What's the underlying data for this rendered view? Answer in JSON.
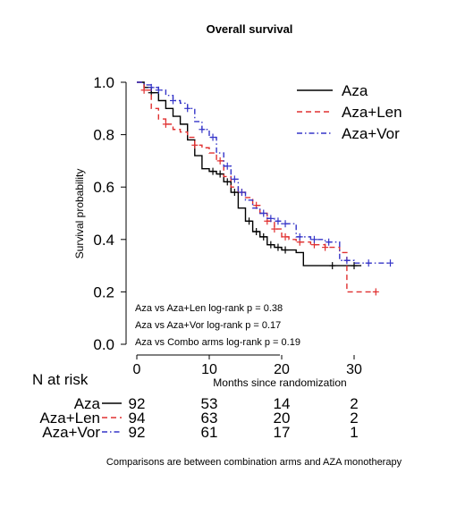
{
  "chart_data": {
    "type": "line",
    "subtype": "kaplan-meier",
    "title": "Overall survival",
    "xlabel": "Months since randomization",
    "ylabel": "Survival probability",
    "xlim": [
      -1,
      35.5
    ],
    "ylim": [
      0,
      1
    ],
    "x_ticks": [
      0,
      10,
      20,
      30
    ],
    "y_ticks": [
      0.0,
      0.2,
      0.4,
      0.6,
      0.8,
      1.0
    ],
    "y_tick_labels": [
      "0.0",
      "0.2",
      "0.4",
      "0.6",
      "0.8",
      "1.0"
    ],
    "legend_position": "top-right",
    "series": [
      {
        "name": "Aza",
        "color": "#000000",
        "dash": "solid",
        "x": [
          0,
          1,
          2,
          3,
          4,
          5,
          6,
          7,
          8,
          9,
          10,
          11,
          12,
          13,
          14,
          15,
          16,
          17,
          18,
          19,
          20,
          22,
          23,
          24,
          26,
          28,
          30,
          31
        ],
        "y": [
          1.0,
          0.98,
          0.96,
          0.93,
          0.9,
          0.87,
          0.84,
          0.78,
          0.72,
          0.67,
          0.66,
          0.65,
          0.62,
          0.58,
          0.52,
          0.47,
          0.43,
          0.41,
          0.38,
          0.37,
          0.36,
          0.35,
          0.3,
          0.3,
          0.3,
          0.3,
          0.3,
          0.3
        ],
        "censor_x": [
          2,
          10.5,
          11.5,
          12.5,
          13.5,
          15.5,
          16.5,
          17.5,
          18.5,
          19.5,
          20.5,
          27,
          30
        ],
        "censor_y": [
          0.96,
          0.66,
          0.65,
          0.62,
          0.58,
          0.47,
          0.43,
          0.41,
          0.38,
          0.37,
          0.36,
          0.3,
          0.3
        ]
      },
      {
        "name": "Aza+Len",
        "color": "#e03030",
        "dash": "dash",
        "x": [
          0,
          1,
          2,
          3,
          4,
          5,
          6,
          7,
          8,
          9,
          10,
          11,
          12,
          13,
          14,
          15,
          16,
          17,
          18,
          19,
          20,
          21,
          22,
          24,
          26,
          28,
          29,
          30,
          33
        ],
        "y": [
          1.0,
          0.97,
          0.9,
          0.86,
          0.84,
          0.82,
          0.81,
          0.79,
          0.76,
          0.75,
          0.73,
          0.7,
          0.64,
          0.6,
          0.58,
          0.56,
          0.53,
          0.5,
          0.47,
          0.44,
          0.41,
          0.4,
          0.39,
          0.38,
          0.37,
          0.35,
          0.2,
          0.2,
          0.2
        ],
        "censor_x": [
          1,
          4,
          8,
          11.5,
          14.5,
          16.5,
          18,
          19,
          20.5,
          22.5,
          24.5,
          26,
          33
        ],
        "censor_y": [
          0.97,
          0.84,
          0.76,
          0.7,
          0.58,
          0.53,
          0.47,
          0.44,
          0.41,
          0.39,
          0.38,
          0.37,
          0.2
        ]
      },
      {
        "name": "Aza+Vor",
        "color": "#3535c8",
        "dash": "dashdot",
        "x": [
          0,
          1,
          2,
          3,
          4,
          5,
          6,
          7,
          8,
          9,
          10,
          11,
          12,
          13,
          14,
          15,
          16,
          17,
          18,
          19,
          20,
          22,
          24,
          26,
          28,
          30,
          32,
          35
        ],
        "y": [
          1.0,
          0.99,
          0.98,
          0.97,
          0.95,
          0.93,
          0.92,
          0.9,
          0.85,
          0.82,
          0.79,
          0.73,
          0.68,
          0.63,
          0.58,
          0.55,
          0.52,
          0.5,
          0.48,
          0.47,
          0.46,
          0.41,
          0.4,
          0.39,
          0.32,
          0.31,
          0.31,
          0.31
        ],
        "censor_x": [
          2,
          3,
          5,
          7,
          9,
          10.5,
          12.5,
          13.5,
          14.5,
          17.5,
          18.5,
          19.5,
          20.5,
          22.5,
          24.5,
          26.5,
          29,
          32,
          35
        ],
        "censor_y": [
          0.98,
          0.97,
          0.93,
          0.9,
          0.82,
          0.79,
          0.68,
          0.63,
          0.58,
          0.5,
          0.48,
          0.47,
          0.46,
          0.41,
          0.4,
          0.39,
          0.32,
          0.31,
          0.31
        ]
      }
    ],
    "annotations": [
      "Aza vs Aza+Len log-rank p =  0.38",
      "Aza vs Aza+Vor log-rank p =  0.17",
      "Aza vs Combo arms log-rank p =  0.19"
    ],
    "risk_table": {
      "title": "N at risk",
      "times": [
        0,
        10,
        20,
        30
      ],
      "rows": [
        {
          "label": "Aza",
          "values": [
            "92",
            "53",
            "14",
            "2"
          ]
        },
        {
          "label": "Aza+Len",
          "values": [
            "94",
            "63",
            "20",
            "2"
          ]
        },
        {
          "label": "Aza+Vor",
          "values": [
            "92",
            "61",
            "17",
            "1"
          ]
        }
      ]
    },
    "footnote": "Comparisons are between combination arms and AZA monotherapy"
  }
}
